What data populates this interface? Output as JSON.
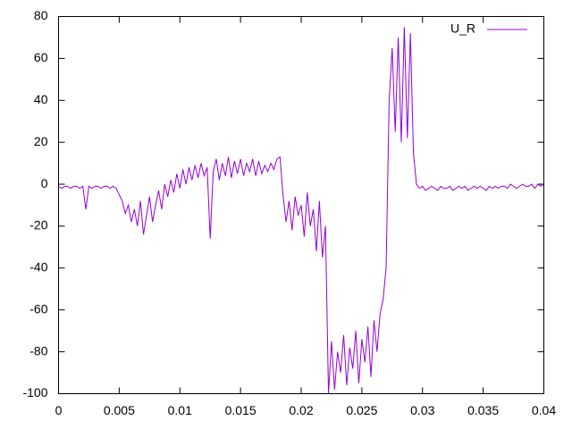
{
  "chart_data": {
    "type": "line",
    "x": [
      0,
      0.00025,
      0.0005,
      0.00075,
      0.001,
      0.00125,
      0.0015,
      0.00175,
      0.002,
      0.00225,
      0.0025,
      0.00275,
      0.003,
      0.00325,
      0.0035,
      0.00375,
      0.004,
      0.00425,
      0.0045,
      0.00475,
      0.005,
      0.00525,
      0.0055,
      0.00575,
      0.006,
      0.00625,
      0.0065,
      0.00675,
      0.007,
      0.00725,
      0.0075,
      0.00775,
      0.008,
      0.00825,
      0.0085,
      0.00875,
      0.009,
      0.00925,
      0.0095,
      0.00975,
      0.01,
      0.01025,
      0.0105,
      0.01075,
      0.011,
      0.01125,
      0.0115,
      0.01175,
      0.012,
      0.01225,
      0.0125,
      0.01275,
      0.013,
      0.01325,
      0.0135,
      0.01375,
      0.014,
      0.01425,
      0.0145,
      0.01475,
      0.015,
      0.01525,
      0.0155,
      0.01575,
      0.016,
      0.01625,
      0.0165,
      0.01675,
      0.017,
      0.01725,
      0.0175,
      0.01775,
      0.018,
      0.01825,
      0.0185,
      0.01875,
      0.019,
      0.01925,
      0.0195,
      0.01975,
      0.02,
      0.02025,
      0.0205,
      0.02075,
      0.021,
      0.02125,
      0.0215,
      0.02175,
      0.022,
      0.02225,
      0.0225,
      0.02275,
      0.023,
      0.02325,
      0.0235,
      0.02375,
      0.024,
      0.02425,
      0.0245,
      0.02475,
      0.025,
      0.02525,
      0.0255,
      0.02575,
      0.026,
      0.02625,
      0.0265,
      0.02675,
      0.027,
      0.02725,
      0.0275,
      0.02775,
      0.028,
      0.02825,
      0.0285,
      0.02875,
      0.029,
      0.02925,
      0.0295,
      0.02975,
      0.03,
      0.03025,
      0.0305,
      0.03075,
      0.031,
      0.03125,
      0.0315,
      0.03175,
      0.032,
      0.03225,
      0.0325,
      0.03275,
      0.033,
      0.03325,
      0.0335,
      0.03375,
      0.034,
      0.03425,
      0.0345,
      0.03475,
      0.035,
      0.03525,
      0.0355,
      0.03575,
      0.036,
      0.03625,
      0.0365,
      0.03675,
      0.037,
      0.03725,
      0.0375,
      0.03775,
      0.038,
      0.03825,
      0.0385,
      0.03875,
      0.039,
      0.03925,
      0.0395,
      0.03975,
      0.04
    ],
    "series": [
      {
        "name": "U_R",
        "color": "#9400d3",
        "values": [
          -1,
          -2,
          -1,
          -1,
          -2,
          -1,
          -1,
          -2,
          -1,
          -12,
          -1,
          -2,
          -1,
          -1,
          -2,
          -1,
          -1,
          -2,
          -1,
          -2,
          -5,
          -8,
          -14,
          -10,
          -18,
          -12,
          -20,
          -8,
          -24,
          -15,
          -6,
          -18,
          -10,
          -3,
          -12,
          0,
          -6,
          2,
          -4,
          5,
          -2,
          7,
          0,
          8,
          2,
          9,
          3,
          10,
          4,
          8,
          -26,
          6,
          12,
          2,
          10,
          4,
          13,
          3,
          11,
          5,
          12,
          4,
          10,
          6,
          12,
          4,
          11,
          5,
          9,
          6,
          10,
          7,
          12,
          13,
          -5,
          -18,
          -8,
          -22,
          -6,
          -15,
          -10,
          -25,
          -4,
          -20,
          -12,
          -32,
          -8,
          -35,
          -20,
          -100,
          -75,
          -98,
          -80,
          -90,
          -72,
          -96,
          -78,
          -88,
          -70,
          -95,
          -74,
          -85,
          -68,
          -92,
          -65,
          -80,
          -62,
          -55,
          -40,
          40,
          65,
          25,
          70,
          20,
          75,
          22,
          72,
          15,
          0,
          -2,
          -1,
          -3,
          -2,
          -1,
          -2,
          -3,
          -1,
          -2,
          -2,
          -1,
          -3,
          -2,
          -1,
          -2,
          -1,
          -3,
          -2,
          -1,
          -2,
          -1,
          -2,
          -3,
          -1,
          -2,
          -1,
          -2,
          -1,
          -1,
          -2,
          0,
          -1,
          -2,
          -1,
          0,
          -1,
          -1,
          0,
          -2,
          0,
          -1,
          0
        ]
      }
    ],
    "xlim": [
      0,
      0.04
    ],
    "xticks": [
      0,
      0.005,
      0.01,
      0.015,
      0.02,
      0.025,
      0.03,
      0.035,
      0.04
    ],
    "ylim": [
      -100,
      80
    ],
    "yticks": [
      -100,
      -80,
      -60,
      -40,
      -20,
      0,
      20,
      40,
      60,
      80
    ],
    "legend": "top-right"
  }
}
